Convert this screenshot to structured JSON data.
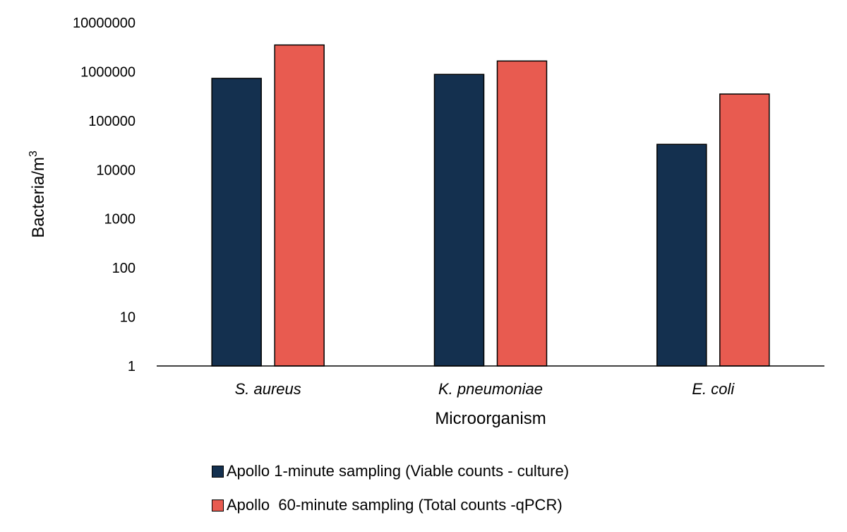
{
  "chart_data": {
    "type": "bar",
    "categories": [
      "S. aureus",
      "K. pneumoniae",
      "E. coli"
    ],
    "series": [
      {
        "name": "Apollo 1-minute sampling (Viable counts - culture)",
        "color": "#14304f",
        "values": [
          730000,
          880000,
          33000
        ]
      },
      {
        "name": "Apollo  60-minute sampling (Total counts -qPCR)",
        "color": "#e85b50",
        "values": [
          3500000,
          1650000,
          350000
        ]
      }
    ],
    "xlabel": "Microorganism",
    "ylabel": "Bacteria/m",
    "ylabel_superscript": "3",
    "yscale": "log",
    "ylim": [
      1,
      10000000
    ],
    "yticks": [
      "1",
      "10",
      "100",
      "1000",
      "10000",
      "100000",
      "1000000",
      "10000000"
    ],
    "grid": false,
    "legend_position": "bottom"
  }
}
